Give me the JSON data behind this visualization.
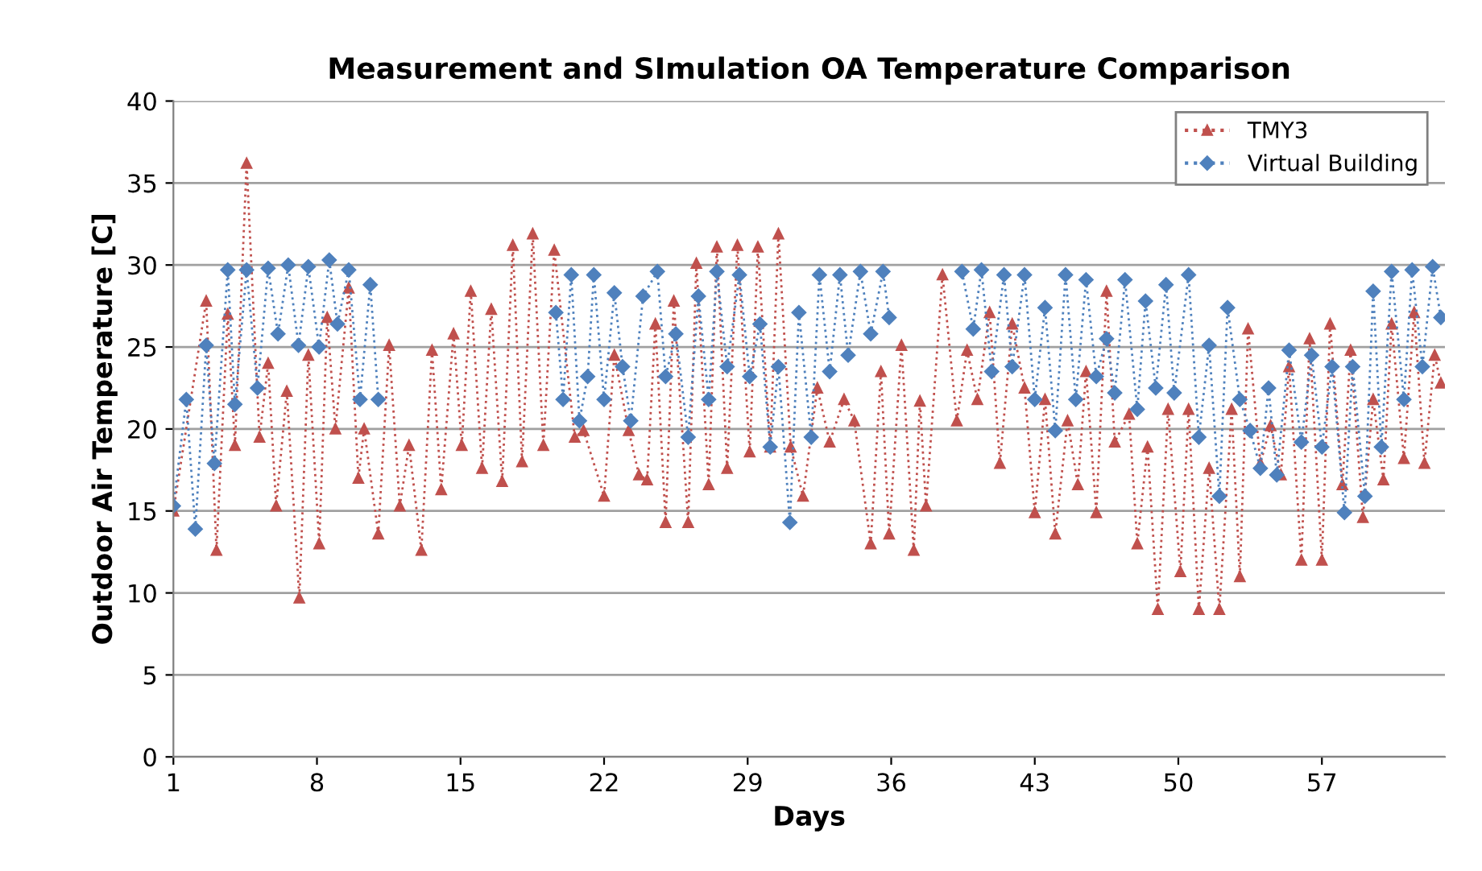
{
  "chart_data": {
    "type": "line",
    "title": "Measurement and SImulation OA Temperature Comparison",
    "xlabel": "Days",
    "ylabel": "Outdoor Air Temperature [C]",
    "xlim": [
      1,
      63
    ],
    "xticks": [
      1,
      8,
      15,
      22,
      29,
      36,
      43,
      50,
      57
    ],
    "ylim": [
      0,
      40
    ],
    "yticks": [
      0,
      5,
      10,
      15,
      20,
      25,
      30,
      35,
      40
    ],
    "grid": "y",
    "legend": "top right",
    "line_style": "dotted",
    "series": [
      {
        "name": "TMY3",
        "color": "#c0504d",
        "marker": "triangle",
        "x": [
          1.0,
          2.6,
          3.1,
          3.65,
          4.0,
          4.57,
          5.2,
          5.62,
          6.01,
          6.53,
          7.14,
          7.58,
          8.11,
          8.5,
          8.9,
          9.55,
          10.02,
          10.3,
          10.99,
          11.52,
          12.04,
          12.49,
          13.09,
          13.61,
          14.06,
          14.66,
          15.06,
          15.5,
          16.05,
          16.5,
          17.03,
          17.55,
          18.0,
          18.52,
          19.04,
          19.57,
          20.57,
          21.0,
          22.0,
          22.5,
          23.2,
          23.7,
          24.1,
          24.5,
          25.0,
          25.4,
          26.1,
          26.5,
          27.1,
          27.5,
          28.0,
          28.5,
          29.1,
          29.5,
          30.1,
          30.5,
          31.1,
          31.7,
          32.4,
          33.0,
          33.7,
          34.2,
          35.0,
          35.5,
          35.9,
          36.5,
          37.1,
          37.4,
          37.7,
          38.5,
          39.2,
          39.7,
          40.2,
          40.8,
          41.3,
          41.9,
          42.5,
          43.0,
          43.5,
          44.0,
          44.6,
          45.1,
          45.5,
          46.0,
          46.5,
          46.9,
          47.6,
          48.0,
          48.5,
          49.0,
          49.5,
          50.1,
          50.5,
          51.0,
          51.5,
          52.0,
          52.6,
          53.0,
          53.4,
          54.0,
          54.5,
          55.0,
          55.4,
          56.0,
          56.4,
          57.0,
          57.4,
          58.0,
          58.4,
          59.0,
          59.5,
          60.0,
          60.4,
          61.0,
          61.5,
          62.0,
          62.5,
          62.8
        ],
        "values": [
          15,
          27.8,
          12.6,
          27,
          19,
          36.2,
          19.5,
          24,
          15.3,
          22.3,
          9.7,
          24.5,
          13,
          26.8,
          20,
          28.6,
          17,
          20,
          13.6,
          25.1,
          15.3,
          19,
          12.6,
          24.8,
          16.3,
          25.8,
          19,
          28.4,
          17.6,
          27.3,
          16.8,
          31.2,
          18,
          31.9,
          19,
          30.9,
          19.5,
          19.9,
          15.9,
          24.5,
          19.9,
          17.2,
          16.9,
          26.4,
          14.3,
          27.8,
          14.3,
          30.1,
          16.6,
          31.1,
          17.6,
          31.2,
          18.6,
          31.1,
          18.9,
          31.9,
          18.9,
          15.9,
          22.5,
          19.2,
          21.8,
          20.5,
          13,
          23.5,
          13.6,
          25.1,
          12.6,
          21.7,
          15.3,
          29.4,
          20.5,
          24.8,
          21.8,
          27.1,
          17.9,
          26.4,
          22.5,
          14.9,
          21.8,
          13.6,
          20.5,
          16.6,
          23.5,
          14.9,
          28.4,
          19.2,
          20.9,
          13,
          18.9,
          9,
          21.2,
          11.3,
          21.2,
          9,
          17.6,
          9,
          21.2,
          11,
          26.1,
          17.9,
          20.2,
          17.2,
          23.8,
          12,
          25.5,
          12,
          26.4,
          16.6,
          24.8,
          14.6,
          21.8,
          16.9,
          26.4,
          18.2,
          27.1,
          17.9,
          24.5,
          22.8
        ]
      },
      {
        "name": "Virtual Building",
        "color": "#4f81bd",
        "marker": "diamond",
        "x": [
          1.0,
          1.63,
          2.07,
          2.6,
          3.0,
          3.65,
          4.0,
          4.57,
          5.1,
          5.62,
          6.1,
          6.6,
          7.1,
          7.58,
          8.1,
          8.6,
          9.0,
          9.55,
          10.1,
          10.6,
          10.99,
          15.0,
          19.65,
          20.0,
          20.4,
          20.8,
          21.2,
          21.5,
          22.0,
          22.5,
          22.9,
          23.3,
          23.9,
          24.6,
          25.0,
          25.5,
          26.1,
          26.6,
          27.1,
          27.5,
          28.0,
          28.6,
          29.1,
          29.6,
          30.1,
          30.5,
          31.06,
          31.5,
          32.1,
          32.5,
          33.0,
          33.5,
          33.9,
          34.5,
          35.0,
          35.6,
          35.9,
          37.5,
          39.45,
          40.0,
          40.4,
          40.9,
          41.5,
          41.9,
          42.5,
          43.0,
          43.5,
          44.0,
          44.5,
          45.0,
          45.5,
          46.0,
          46.5,
          46.9,
          47.4,
          48.0,
          48.4,
          48.9,
          49.4,
          49.8,
          50.5,
          51.0,
          51.5,
          52.0,
          52.4,
          53.0,
          53.5,
          54.0,
          54.4,
          54.8,
          55.4,
          56.0,
          56.5,
          57.0,
          57.5,
          58.1,
          58.5,
          59.1,
          59.5,
          59.9,
          60.4,
          61.0,
          61.4,
          61.9,
          62.4,
          62.8
        ],
        "values": [
          15.3,
          21.8,
          13.9,
          25.1,
          17.9,
          29.7,
          21.5,
          29.7,
          22.5,
          29.8,
          25.8,
          30,
          25.1,
          29.9,
          25,
          30.3,
          26.4,
          29.7,
          21.8,
          28.8,
          21.8,
          null,
          27.1,
          21.8,
          29.4,
          20.5,
          23.2,
          29.4,
          21.8,
          28.3,
          23.8,
          20.5,
          28.1,
          29.6,
          23.2,
          25.8,
          19.5,
          28.1,
          21.8,
          29.6,
          23.8,
          29.4,
          23.2,
          26.4,
          18.9,
          23.8,
          14.3,
          27.1,
          19.5,
          29.4,
          23.5,
          29.4,
          24.5,
          29.6,
          25.8,
          29.6,
          26.8,
          null,
          29.6,
          26.1,
          29.7,
          23.5,
          29.4,
          23.8,
          29.4,
          21.8,
          27.4,
          19.9,
          29.4,
          21.8,
          29.1,
          23.2,
          25.5,
          22.2,
          29.1,
          21.2,
          27.8,
          22.5,
          28.8,
          22.2,
          29.4,
          19.5,
          25.1,
          15.9,
          27.4,
          21.8,
          19.9,
          17.6,
          22.5,
          17.2,
          24.8,
          19.2,
          24.5,
          18.9,
          23.8,
          14.9,
          23.8,
          15.9,
          28.4,
          18.9,
          29.6,
          21.8,
          29.7,
          23.8,
          29.9,
          26.8
        ]
      }
    ]
  }
}
